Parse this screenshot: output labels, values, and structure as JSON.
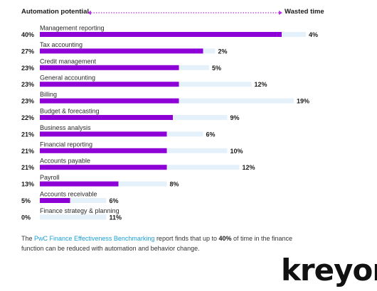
{
  "header": {
    "left_label": "Automation potential",
    "right_label": "Wasted time"
  },
  "colors": {
    "automation": "#8d00d6",
    "wasted": "#e4f1fb",
    "arrow": "#b533e0",
    "link": "#1a9fd6"
  },
  "chart_data": {
    "type": "bar",
    "categories": [
      "Management reporting",
      "Tax accounting",
      "Credit management",
      "General accounting",
      "Billing",
      "Budget & forecasting",
      "Business analysis",
      "Financial reporting",
      "Accounts payable",
      "Payroll",
      "Accounts receivable",
      "Finance strategy & planning"
    ],
    "series": [
      {
        "name": "Automation potential",
        "values": [
          40,
          27,
          23,
          23,
          23,
          22,
          21,
          21,
          21,
          13,
          5,
          0
        ],
        "labels": [
          "40%",
          "27%",
          "23%",
          "23%",
          "23%",
          "22%",
          "21%",
          "21%",
          "21%",
          "13%",
          "5%",
          "0%"
        ]
      },
      {
        "name": "Wasted time",
        "values": [
          4,
          2,
          5,
          12,
          19,
          9,
          6,
          10,
          12,
          8,
          6,
          11
        ],
        "labels": [
          "4%",
          "2%",
          "5%",
          "12%",
          "19%",
          "9%",
          "6%",
          "10%",
          "12%",
          "8%",
          "6%",
          "11%"
        ]
      }
    ],
    "xlim": [
      0,
      40
    ]
  },
  "footnote": {
    "prefix": "The ",
    "link": "PwC Finance Effectiveness Benchmarking",
    "middle": " report finds that up to ",
    "highlight": "40%",
    "suffix": " of time in the finance function can be reduced with automation and behavior change."
  },
  "brand": "kreyon"
}
